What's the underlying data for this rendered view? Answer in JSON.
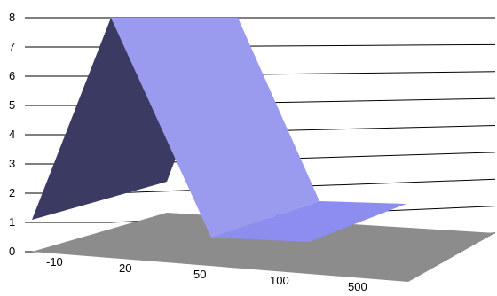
{
  "chart_data": {
    "type": "area",
    "view": "3d",
    "categories": [
      "-10",
      "20",
      "50",
      "100",
      "500"
    ],
    "values": [
      1,
      8,
      8,
      0.5,
      0.5
    ],
    "ylim": [
      0,
      8
    ],
    "yticks": [
      0,
      1,
      2,
      3,
      4,
      5,
      6,
      7,
      8
    ],
    "grid": true,
    "legend": "none",
    "title": "",
    "xlabel": "",
    "ylabel": ""
  },
  "colors": {
    "surface_top": "#9a9aee",
    "surface_bottom": "#8d8def",
    "surface_side": "#3a3a63",
    "floor": "#8c8c8c",
    "grid": "#000000"
  }
}
